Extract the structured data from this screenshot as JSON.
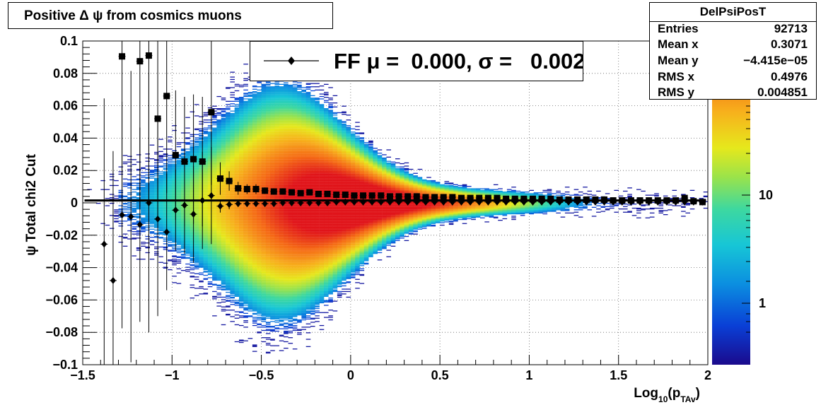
{
  "title": "Positive Δ ψ from cosmics muons",
  "stats": {
    "name": "DelPsiPosT",
    "rows": [
      {
        "key": "Entries",
        "value": "92713"
      },
      {
        "key": "Mean x",
        "value": "0.3071"
      },
      {
        "key": "Mean y",
        "value": "−4.415e−05"
      },
      {
        "key": "RMS x",
        "value": "0.4976"
      },
      {
        "key": "RMS y",
        "value": "0.004851"
      }
    ]
  },
  "legend": {
    "text": "FF μ =  0.000, σ =   0.002"
  },
  "chart_data": {
    "type": "scatter",
    "title": "Positive Δ ψ from cosmics muons",
    "xlabel": "Log10(pTAv)",
    "ylabel": "ψ  Total chi2 Cut",
    "xlim": [
      -1.5,
      2.0
    ],
    "ylim": [
      -0.1,
      0.1
    ],
    "xticks": [
      "−1.5",
      "−1",
      "−0.5",
      "0",
      "0.5",
      "1",
      "1.5",
      "2"
    ],
    "yticks": [
      "−0.1",
      "−0.08",
      "−0.06",
      "−0.04",
      "−0.02",
      "0",
      "0.02",
      "0.04",
      "0.06",
      "0.08",
      "0.1"
    ],
    "grid": true,
    "colorbar": {
      "scale": "log",
      "labels": [
        "1",
        "10"
      ]
    },
    "fit_line": {
      "y": 0.0015
    },
    "series": [
      {
        "name": "FF",
        "marker": "square",
        "x": [
          -1.28,
          -1.18,
          -1.13,
          -1.08,
          -1.03,
          -0.98,
          -0.93,
          -0.88,
          -0.83,
          -0.78,
          -0.73,
          -0.68,
          -0.63,
          -0.58,
          -0.53,
          -0.48,
          -0.43,
          -0.38,
          -0.33,
          -0.28,
          -0.23,
          -0.18,
          -0.13,
          -0.08,
          -0.03,
          0.02,
          0.07,
          0.12,
          0.17,
          0.22,
          0.27,
          0.32,
          0.37,
          0.42,
          0.47,
          0.52,
          0.57,
          0.62,
          0.67,
          0.72,
          0.77,
          0.82,
          0.87,
          0.92,
          0.97,
          1.02,
          1.07,
          1.12,
          1.17,
          1.22,
          1.27,
          1.32,
          1.37,
          1.42,
          1.47,
          1.52,
          1.57,
          1.62,
          1.67,
          1.72,
          1.77,
          1.82,
          1.87,
          1.92,
          1.97
        ],
        "y": [
          0.0905,
          0.0875,
          0.091,
          0.052,
          0.066,
          0.0295,
          0.0255,
          0.027,
          0.0255,
          0.056,
          0.015,
          0.0135,
          0.009,
          0.0085,
          0.0085,
          0.0075,
          0.007,
          0.007,
          0.0065,
          0.006,
          0.0065,
          0.0055,
          0.0055,
          0.005,
          0.005,
          0.0045,
          0.0045,
          0.0045,
          0.0045,
          0.004,
          0.004,
          0.004,
          0.004,
          0.0035,
          0.0035,
          0.0035,
          0.0035,
          0.003,
          0.003,
          0.003,
          0.003,
          0.003,
          0.0025,
          0.0025,
          0.0025,
          0.0025,
          0.0025,
          0.0025,
          0.002,
          0.002,
          0.002,
          0.002,
          0.002,
          0.002,
          0.0015,
          0.0015,
          0.0015,
          0.0015,
          0.0015,
          0.0015,
          0.0015,
          0.0015,
          0.003,
          0.001,
          0.0005
        ],
        "yerr": [
          0.09,
          0.09,
          0.09,
          0.06,
          0.06,
          0.04,
          0.04,
          0.04,
          0.04,
          0.045,
          0.01,
          0.006,
          0.004,
          0.003,
          0.003,
          0.002,
          0.002,
          0.002,
          0.0015,
          0.0015,
          0.0015,
          0.001,
          0.001,
          0.001,
          0.001,
          0.001,
          0.001,
          0.001,
          0.001,
          0.001,
          0.001,
          0.001,
          0.001,
          0.001,
          0.001,
          0.001,
          0.001,
          0.001,
          0.001,
          0.001,
          0.001,
          0.001,
          0.001,
          0.001,
          0.001,
          0.001,
          0.001,
          0.001,
          0.001,
          0.001,
          0.001,
          0.001,
          0.001,
          0.001,
          0.001,
          0.001,
          0.001,
          0.001,
          0.001,
          0.001,
          0.001,
          0.001,
          0.001,
          0.001,
          0.001
        ]
      },
      {
        "name": "",
        "marker": "diamond",
        "x": [
          -1.38,
          -1.33,
          -1.28,
          -1.23,
          -1.18,
          -1.13,
          -1.08,
          -1.03,
          -0.98,
          -0.93,
          -0.88,
          -0.83,
          -0.78,
          -0.73,
          -0.68,
          -0.63,
          -0.58,
          -0.53,
          -0.48,
          -0.43,
          -0.38,
          -0.33,
          -0.28,
          -0.23,
          -0.18,
          -0.13,
          -0.08,
          -0.03,
          0.02,
          0.07,
          0.12,
          0.17,
          0.22,
          0.27,
          0.32,
          0.37,
          0.42,
          0.47,
          0.52,
          0.57,
          0.62,
          0.67,
          0.72,
          0.77,
          0.82,
          0.87,
          0.92,
          0.97,
          1.02,
          1.07,
          1.12,
          1.17,
          1.22,
          1.27,
          1.32,
          1.37,
          1.42,
          1.47,
          1.52,
          1.57,
          1.62,
          1.67,
          1.72,
          1.77,
          1.82,
          1.87,
          1.92,
          1.97
        ],
        "y": [
          -0.0255,
          -0.048,
          -0.0075,
          -0.0085,
          -0.0135,
          0.0,
          -0.01,
          -0.018,
          -0.0045,
          -0.0015,
          -0.007,
          0.0015,
          0.0045,
          -0.002,
          -0.001,
          -0.0005,
          -0.0005,
          -0.0005,
          -0.0005,
          -0.0005,
          0.0,
          0.0,
          0.0,
          0.0,
          0.0,
          0.0,
          0.0005,
          0.0005,
          0.0005,
          0.0005,
          0.0005,
          0.0005,
          0.0005,
          0.0005,
          0.0005,
          0.0005,
          0.0005,
          0.0005,
          0.0005,
          0.0005,
          0.0005,
          0.0005,
          0.0005,
          0.0005,
          0.0005,
          0.0005,
          0.0005,
          0.0005,
          0.0005,
          0.0005,
          0.0005,
          0.0005,
          0.0005,
          0.0005,
          0.0005,
          0.0005,
          0.0005,
          0.0005,
          0.0005,
          0.0005,
          0.0005,
          0.0005,
          0.0005,
          0.0005,
          0.0005,
          0.0005,
          0.0005,
          0.0005
        ],
        "yerr": [
          0.09,
          0.08,
          0.07,
          0.09,
          0.06,
          0.08,
          0.06,
          0.036,
          0.025,
          0.03,
          0.03,
          0.03,
          0.03,
          0.004,
          0.003,
          0.002,
          0.002,
          0.0015,
          0.0015,
          0.0015,
          0.001,
          0.001,
          0.001,
          0.001,
          0.001,
          0.001,
          0.001,
          0.001,
          0.001,
          0.001,
          0.001,
          0.001,
          0.001,
          0.001,
          0.001,
          0.001,
          0.001,
          0.001,
          0.001,
          0.001,
          0.001,
          0.001,
          0.001,
          0.001,
          0.001,
          0.001,
          0.001,
          0.001,
          0.001,
          0.001,
          0.001,
          0.001,
          0.001,
          0.001,
          0.001,
          0.001,
          0.001,
          0.001,
          0.001,
          0.001,
          0.001,
          0.001,
          0.001,
          0.001,
          0.001,
          0.001,
          0.001,
          0.001
        ]
      }
    ]
  }
}
